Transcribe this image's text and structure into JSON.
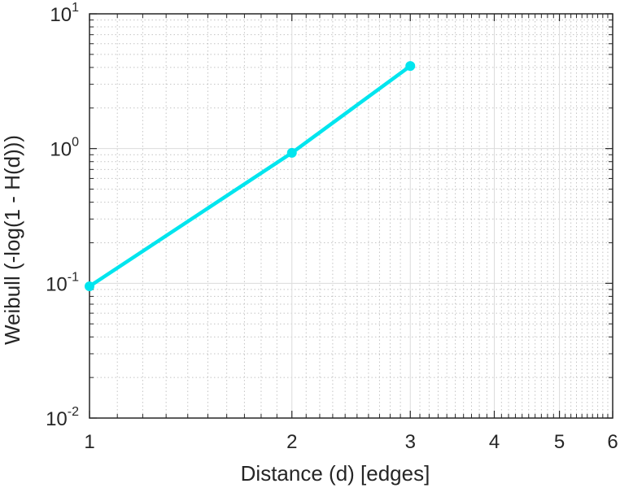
{
  "chart_data": {
    "type": "line",
    "title": "",
    "xlabel": "Distance (d) [edges]",
    "ylabel": "Weibull (-log(1 - H(d)))",
    "xscale": "log",
    "yscale": "log",
    "xlim": [
      1,
      6
    ],
    "ylim": [
      0.01,
      10
    ],
    "xticks": [
      1,
      2,
      3,
      4,
      5,
      6
    ],
    "xtick_labels": [
      "1",
      "2",
      "3",
      "4",
      "5",
      "6"
    ],
    "yticks": [
      0.01,
      0.1,
      1,
      10
    ],
    "ytick_labels": [
      {
        "base": "10",
        "exp": "-2"
      },
      {
        "base": "10",
        "exp": "-1"
      },
      {
        "base": "10",
        "exp": "0"
      },
      {
        "base": "10",
        "exp": "1"
      }
    ],
    "grid": true,
    "minor_grid": true,
    "legend": "none",
    "series": [
      {
        "color": "#00e5ee",
        "marker": "circle",
        "x": [
          1,
          2,
          3
        ],
        "y": [
          0.095,
          0.93,
          4.1
        ]
      }
    ]
  }
}
